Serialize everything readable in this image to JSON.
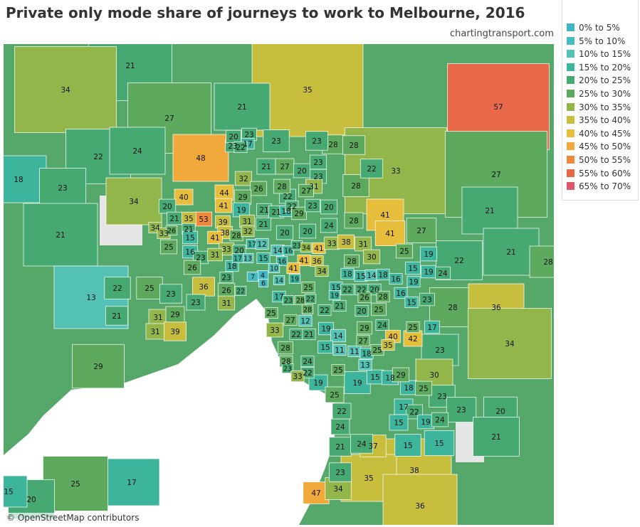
{
  "title": "Private only mode share of journeys to work to Melbourne, 2016",
  "credit": "chartingtransport.com",
  "attribution": "© OpenStreetMap contributors",
  "legend": [
    {
      "label": "0% to 5%",
      "color": "#41b6c4"
    },
    {
      "label": "5% to 10%",
      "color": "#45bcbf"
    },
    {
      "label": "10% to 15%",
      "color": "#53c1b3"
    },
    {
      "label": "15% to 20%",
      "color": "#3db59c"
    },
    {
      "label": "20% to 25%",
      "color": "#47a972"
    },
    {
      "label": "25% to 30%",
      "color": "#5daa5e"
    },
    {
      "label": "30% to 35%",
      "color": "#93b64a"
    },
    {
      "label": "35% to 40%",
      "color": "#c8be3e"
    },
    {
      "label": "40% to 45%",
      "color": "#e7bd3c"
    },
    {
      "label": "45% to 50%",
      "color": "#f2a93c"
    },
    {
      "label": "50% to 55%",
      "color": "#ef8a3d"
    },
    {
      "label": "55% to 60%",
      "color": "#e8684a"
    },
    {
      "label": "65% to 70%",
      "color": "#e0566c"
    }
  ],
  "regions": [
    21,
    34,
    35,
    57,
    27,
    21,
    18,
    22,
    24,
    23,
    33,
    27,
    21,
    34,
    13,
    21,
    21,
    28,
    22,
    28,
    36,
    34,
    29,
    48,
    23,
    30,
    23,
    23,
    20,
    21,
    38,
    35,
    36,
    17,
    25,
    20,
    15,
    47,
    34,
    41,
    41,
    27,
    28,
    22,
    28,
    28,
    23,
    23,
    22,
    21,
    25,
    23,
    31,
    29,
    31,
    39,
    36,
    23,
    26,
    31,
    15,
    15,
    37,
    23,
    21,
    24,
    24,
    22,
    19,
    25,
    19,
    15,
    18,
    17,
    22,
    19,
    24,
    15,
    18,
    25,
    29,
    23,
    20,
    23,
    17,
    22,
    21,
    27,
    20,
    23,
    23,
    32,
    26,
    22,
    28,
    31,
    27,
    44,
    40,
    41,
    29,
    20,
    19,
    21,
    21,
    18,
    22,
    29,
    23,
    20,
    24,
    28,
    53,
    35,
    21,
    34,
    33,
    26,
    21,
    25,
    15,
    16,
    39,
    38,
    41,
    33,
    28,
    31,
    32,
    21,
    20,
    20,
    23,
    31,
    26,
    20,
    17,
    13,
    12,
    15,
    14,
    16,
    23,
    34,
    41,
    33,
    38,
    31,
    36,
    41,
    41,
    34,
    16,
    10,
    4,
    7,
    6,
    14,
    19,
    18,
    17,
    23,
    22,
    30,
    28,
    25,
    19,
    15,
    19,
    24,
    18,
    15,
    14,
    18,
    16,
    19,
    15,
    25,
    22,
    22,
    20,
    16,
    15,
    23,
    19,
    17,
    23,
    28,
    22,
    25,
    27,
    12,
    28,
    22,
    21,
    20,
    25,
    26,
    28,
    19,
    14,
    15,
    11,
    11,
    18,
    25,
    13,
    29,
    27,
    24,
    40,
    35,
    42,
    17,
    25,
    33,
    22,
    21,
    28,
    28,
    23,
    24,
    22,
    33,
    25
  ]
}
